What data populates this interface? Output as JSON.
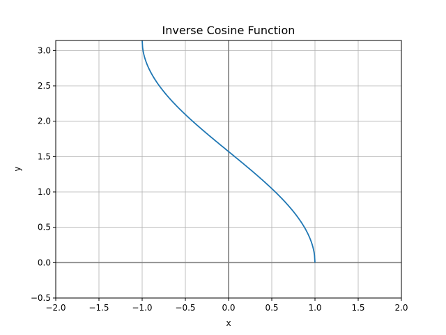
{
  "chart_data": {
    "type": "line",
    "title": "Inverse Cosine Function",
    "xlabel": "x",
    "ylabel": "y",
    "xlim": [
      -2.0,
      2.0
    ],
    "ylim": [
      -0.5,
      3.1416
    ],
    "grid": true,
    "xticks": [
      -2.0,
      -1.5,
      -1.0,
      -0.5,
      0.0,
      0.5,
      1.0,
      1.5,
      2.0
    ],
    "xtick_labels": [
      "−2.0",
      "−1.5",
      "−1.0",
      "−0.5",
      "0.0",
      "0.5",
      "1.0",
      "1.5",
      "2.0"
    ],
    "yticks": [
      -0.5,
      0.0,
      0.5,
      1.0,
      1.5,
      2.0,
      2.5,
      3.0
    ],
    "ytick_labels": [
      "−0.5",
      "0.0",
      "0.5",
      "1.0",
      "1.5",
      "2.0",
      "2.5",
      "3.0"
    ],
    "reference_lines": {
      "x": 0,
      "y": 0
    },
    "series": [
      {
        "function": "arccos",
        "color": "#1f77b4",
        "x": [
          -1.0,
          -0.99,
          -0.96,
          -0.9,
          -0.8,
          -0.7,
          -0.6,
          -0.5,
          -0.4,
          -0.3,
          -0.2,
          -0.1,
          0.0,
          0.1,
          0.2,
          0.3,
          0.4,
          0.5,
          0.6,
          0.7,
          0.8,
          0.9,
          0.96,
          0.99,
          1.0
        ],
        "y": [
          3.1416,
          3.0004,
          2.8578,
          2.6906,
          2.4981,
          2.3462,
          2.2143,
          2.0944,
          1.9823,
          1.8755,
          1.7722,
          1.671,
          1.5708,
          1.4706,
          1.3694,
          1.2661,
          1.1593,
          1.0472,
          0.9273,
          0.7954,
          0.6435,
          0.451,
          0.2838,
          0.1415,
          0.0
        ]
      }
    ]
  }
}
